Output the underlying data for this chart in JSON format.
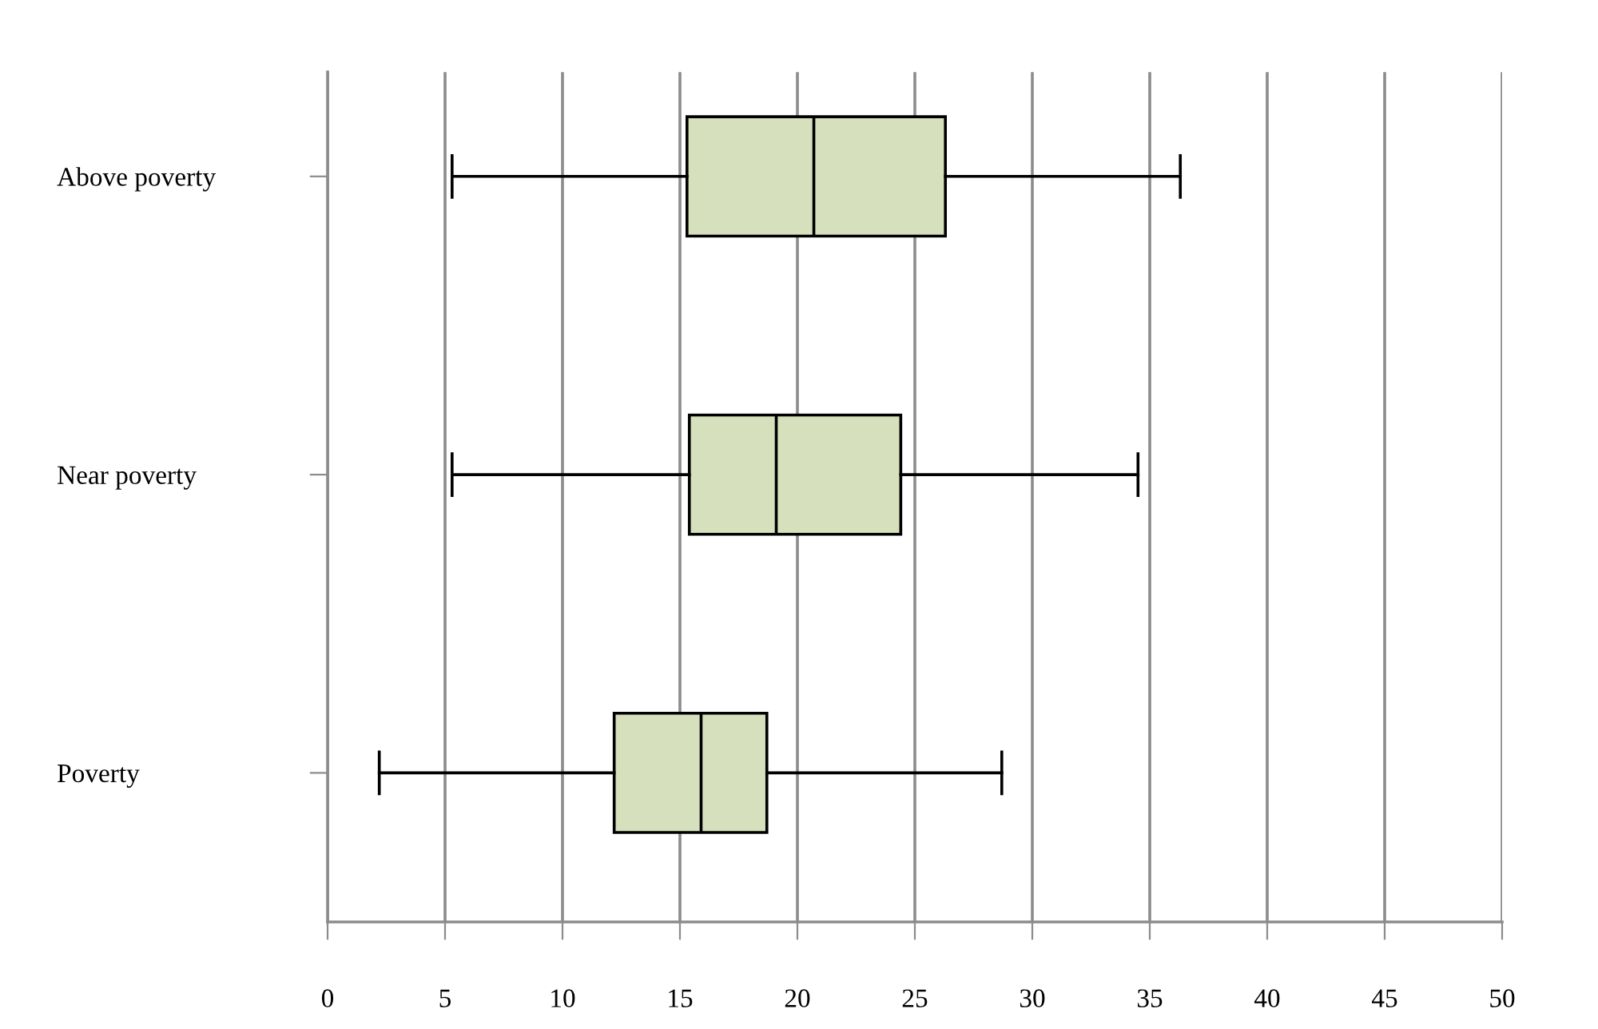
{
  "chart_data": {
    "type": "box",
    "orientation": "horizontal",
    "categories": [
      "Above poverty",
      "Near poverty",
      "Poverty"
    ],
    "boxes": [
      {
        "low": 5.3,
        "q1": 15.3,
        "median": 20.7,
        "q3": 26.3,
        "high": 36.3
      },
      {
        "low": 5.3,
        "q1": 15.4,
        "median": 19.1,
        "q3": 24.4,
        "high": 34.5
      },
      {
        "low": 2.2,
        "q1": 12.2,
        "median": 15.9,
        "q3": 18.7,
        "high": 28.7
      }
    ],
    "color": "#d6e0bc",
    "xlim": [
      0,
      50
    ],
    "xticks": [
      0,
      5,
      10,
      15,
      20,
      25,
      30,
      35,
      40,
      45,
      50
    ],
    "grid": "x"
  }
}
